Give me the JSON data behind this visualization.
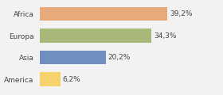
{
  "categories": [
    "America",
    "Asia",
    "Europa",
    "Africa"
  ],
  "values": [
    6.2,
    20.2,
    34.3,
    39.2
  ],
  "labels": [
    "6,2%",
    "20,2%",
    "34,3%",
    "39,2%"
  ],
  "bar_colors": [
    "#f5d26b",
    "#6e8fbf",
    "#a8b87a",
    "#e8aa7a"
  ],
  "background_color": "#f2f2f2",
  "xlim": [
    0,
    48
  ],
  "label_fontsize": 6.5,
  "tick_fontsize": 6.5,
  "bar_height": 0.65
}
